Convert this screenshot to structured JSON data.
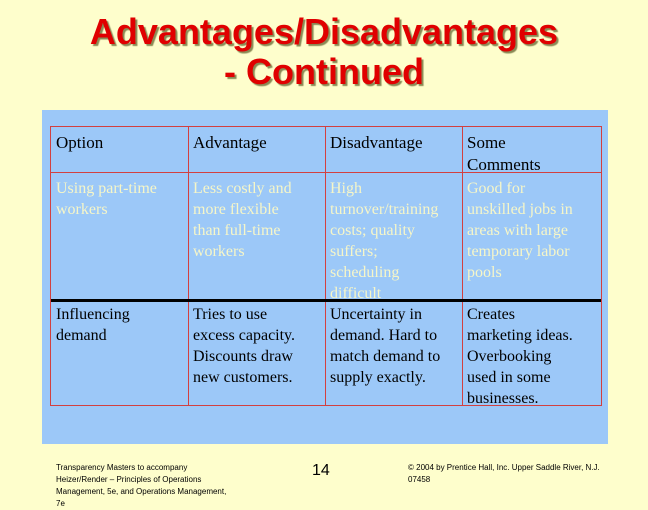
{
  "slide": {
    "title_line1": "Advantages/Disadvantages",
    "title_line2": "- Continued",
    "table": {
      "headers": [
        "Option",
        "Advantage",
        "Disadvantage",
        "Some\nComments"
      ],
      "rows": [
        [
          "Using part-time\nworkers",
          "Less costly and\nmore flexible\nthan full-time\nworkers",
          "High\nturnover/training\ncosts; quality\nsuffers;\nscheduling\ndifficult",
          "Good for\nunskilled jobs in\nareas with large\ntemporary labor\npools"
        ],
        [
          "Influencing\ndemand",
          "Tries to use\nexcess capacity.\nDiscounts draw\nnew customers.",
          "Uncertainty in\ndemand.  Hard to\nmatch demand to\nsupply exactly.",
          "Creates\nmarketing ideas.\nOverbooking\nused in some\nbusinesses."
        ]
      ]
    },
    "footer_left": "Transparency Masters to accompany\nHeizer/Render – Principles of Operations\nManagement, 5e, and Operations Management,\n7e",
    "page_number": "14",
    "footer_right": "© 2004 by Prentice Hall, Inc. Upper Saddle River, N.J.\n07458",
    "colors": {
      "background": "#fefecc",
      "title": "#e00000",
      "panel": "#9cc8f8",
      "grid_lines": "#d24040",
      "row1_text": "#f6f6c8",
      "row2_text": "#000000"
    }
  }
}
